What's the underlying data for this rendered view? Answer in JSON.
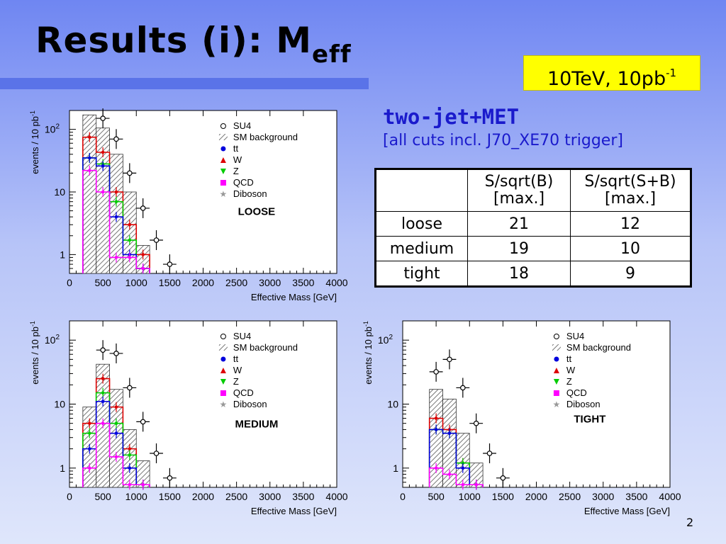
{
  "slide": {
    "title_main": "Results (i): M",
    "title_sub": "eff",
    "badge_main": "10TeV, 10pb",
    "badge_sup": "-1",
    "selection_title": "two-jet+MET",
    "selection_subtitle": "[all cuts incl. J70_XE70 trigger]",
    "page_number": "2"
  },
  "table": {
    "header": [
      "",
      "S/sqrt(B)\n[max.]",
      "S/sqrt(S+B)\n[max.]"
    ],
    "rows": [
      {
        "label": "loose",
        "sb": "21",
        "ssb": "12"
      },
      {
        "label": "medium",
        "sb": "19",
        "ssb": "10"
      },
      {
        "label": "tight",
        "sb": "18",
        "ssb": "9"
      }
    ]
  },
  "colors": {
    "su4": "#000000",
    "tt": "#0000dd",
    "w": "#dd0000",
    "z": "#00cc00",
    "qcd": "#ff00ff",
    "hatch": "#555555"
  },
  "chart_data": [
    {
      "type": "bar",
      "label": "LOOSE",
      "xlabel": "Effective Mass [GeV]",
      "ylabel": "events / 10 pb",
      "ylabel_sup": "-1",
      "log_y": true,
      "xlim": [
        0,
        4000
      ],
      "ylim": [
        0.5,
        200
      ],
      "xticks": [
        "0",
        "500",
        "1000",
        "1500",
        "2000",
        "2500",
        "3000",
        "3500",
        "4000"
      ],
      "yticks": [
        {
          "value": 1,
          "label": "1"
        },
        {
          "value": 10,
          "label": "10"
        },
        {
          "value": 100,
          "label": "10",
          "sup": "2"
        }
      ],
      "legend": [
        "SU4",
        "SM background",
        "tt",
        "W",
        "Z",
        "QCD",
        "Diboson"
      ],
      "bin_edges": [
        200,
        400,
        600,
        800,
        1000,
        1200
      ],
      "series": [
        {
          "key": "sm",
          "values": [
            170,
            105,
            40,
            10,
            1.4
          ]
        },
        {
          "key": "w",
          "values": [
            75,
            43,
            10,
            3,
            1
          ]
        },
        {
          "key": "z",
          "values": [
            35,
            28,
            7,
            1.7,
            0.6
          ]
        },
        {
          "key": "tt",
          "values": [
            35,
            26,
            4,
            1,
            0.6
          ]
        },
        {
          "key": "qcd",
          "values": [
            22,
            10,
            0.9,
            0.9,
            0.6
          ]
        }
      ],
      "su4_x": [
        500,
        700,
        900,
        1100,
        1300,
        1500
      ],
      "su4_y": [
        150,
        70,
        20,
        5.5,
        1.7,
        0.7
      ]
    },
    {
      "type": "bar",
      "label": "MEDIUM",
      "xlabel": "Effective Mass [GeV]",
      "ylabel": "events / 10 pb",
      "ylabel_sup": "-1",
      "log_y": true,
      "xlim": [
        0,
        4000
      ],
      "ylim": [
        0.5,
        200
      ],
      "xticks": [
        "0",
        "500",
        "1000",
        "1500",
        "2000",
        "2500",
        "3000",
        "3500",
        "4000"
      ],
      "yticks": [
        {
          "value": 1,
          "label": "1"
        },
        {
          "value": 10,
          "label": "10"
        },
        {
          "value": 100,
          "label": "10",
          "sup": "2"
        }
      ],
      "legend": [
        "SU4",
        "SM background",
        "tt",
        "W",
        "Z",
        "QCD",
        "Diboson"
      ],
      "bin_edges": [
        200,
        400,
        600,
        800,
        1000,
        1200
      ],
      "series": [
        {
          "key": "sm",
          "values": [
            9,
            42,
            17,
            4,
            1.3
          ]
        },
        {
          "key": "w",
          "values": [
            5,
            25,
            9,
            2,
            0.55
          ]
        },
        {
          "key": "z",
          "values": [
            3.5,
            15,
            5,
            1.6,
            0.55
          ]
        },
        {
          "key": "tt",
          "values": [
            2,
            11,
            3.5,
            1,
            0.55
          ]
        },
        {
          "key": "qcd",
          "values": [
            1,
            5,
            1.5,
            0.55,
            0.55
          ]
        }
      ],
      "su4_x": [
        500,
        700,
        900,
        1100,
        1300,
        1500
      ],
      "su4_y": [
        70,
        62,
        18,
        5.3,
        1.7,
        0.7
      ]
    },
    {
      "type": "bar",
      "label": "TIGHT",
      "xlabel": "Effective Mass [GeV]",
      "ylabel": "events / 10 pb",
      "ylabel_sup": "-1",
      "log_y": true,
      "xlim": [
        0,
        4000
      ],
      "ylim": [
        0.5,
        200
      ],
      "xticks": [
        "0",
        "500",
        "1000",
        "1500",
        "2000",
        "2500",
        "3000",
        "3500",
        "4000"
      ],
      "yticks": [
        {
          "value": 1,
          "label": "1"
        },
        {
          "value": 10,
          "label": "10"
        },
        {
          "value": 100,
          "label": "10",
          "sup": "2"
        }
      ],
      "legend": [
        "SU4",
        "SM background",
        "tt",
        "W",
        "Z",
        "QCD",
        "Diboson"
      ],
      "bin_edges": [
        400,
        600,
        800,
        1000,
        1200
      ],
      "series": [
        {
          "key": "sm",
          "values": [
            17,
            12,
            3.5,
            1.2
          ]
        },
        {
          "key": "w",
          "values": [
            6,
            4,
            1.2,
            0.55
          ]
        },
        {
          "key": "z",
          "values": [
            4,
            3.5,
            1.2,
            0.55
          ]
        },
        {
          "key": "tt",
          "values": [
            4,
            3.5,
            1,
            0.55
          ]
        },
        {
          "key": "qcd",
          "values": [
            1,
            0.8,
            0.55,
            0.55
          ]
        }
      ],
      "su4_x": [
        500,
        700,
        900,
        1100,
        1300,
        1500
      ],
      "su4_y": [
        32,
        50,
        18,
        5,
        1.7,
        0.7
      ]
    }
  ]
}
